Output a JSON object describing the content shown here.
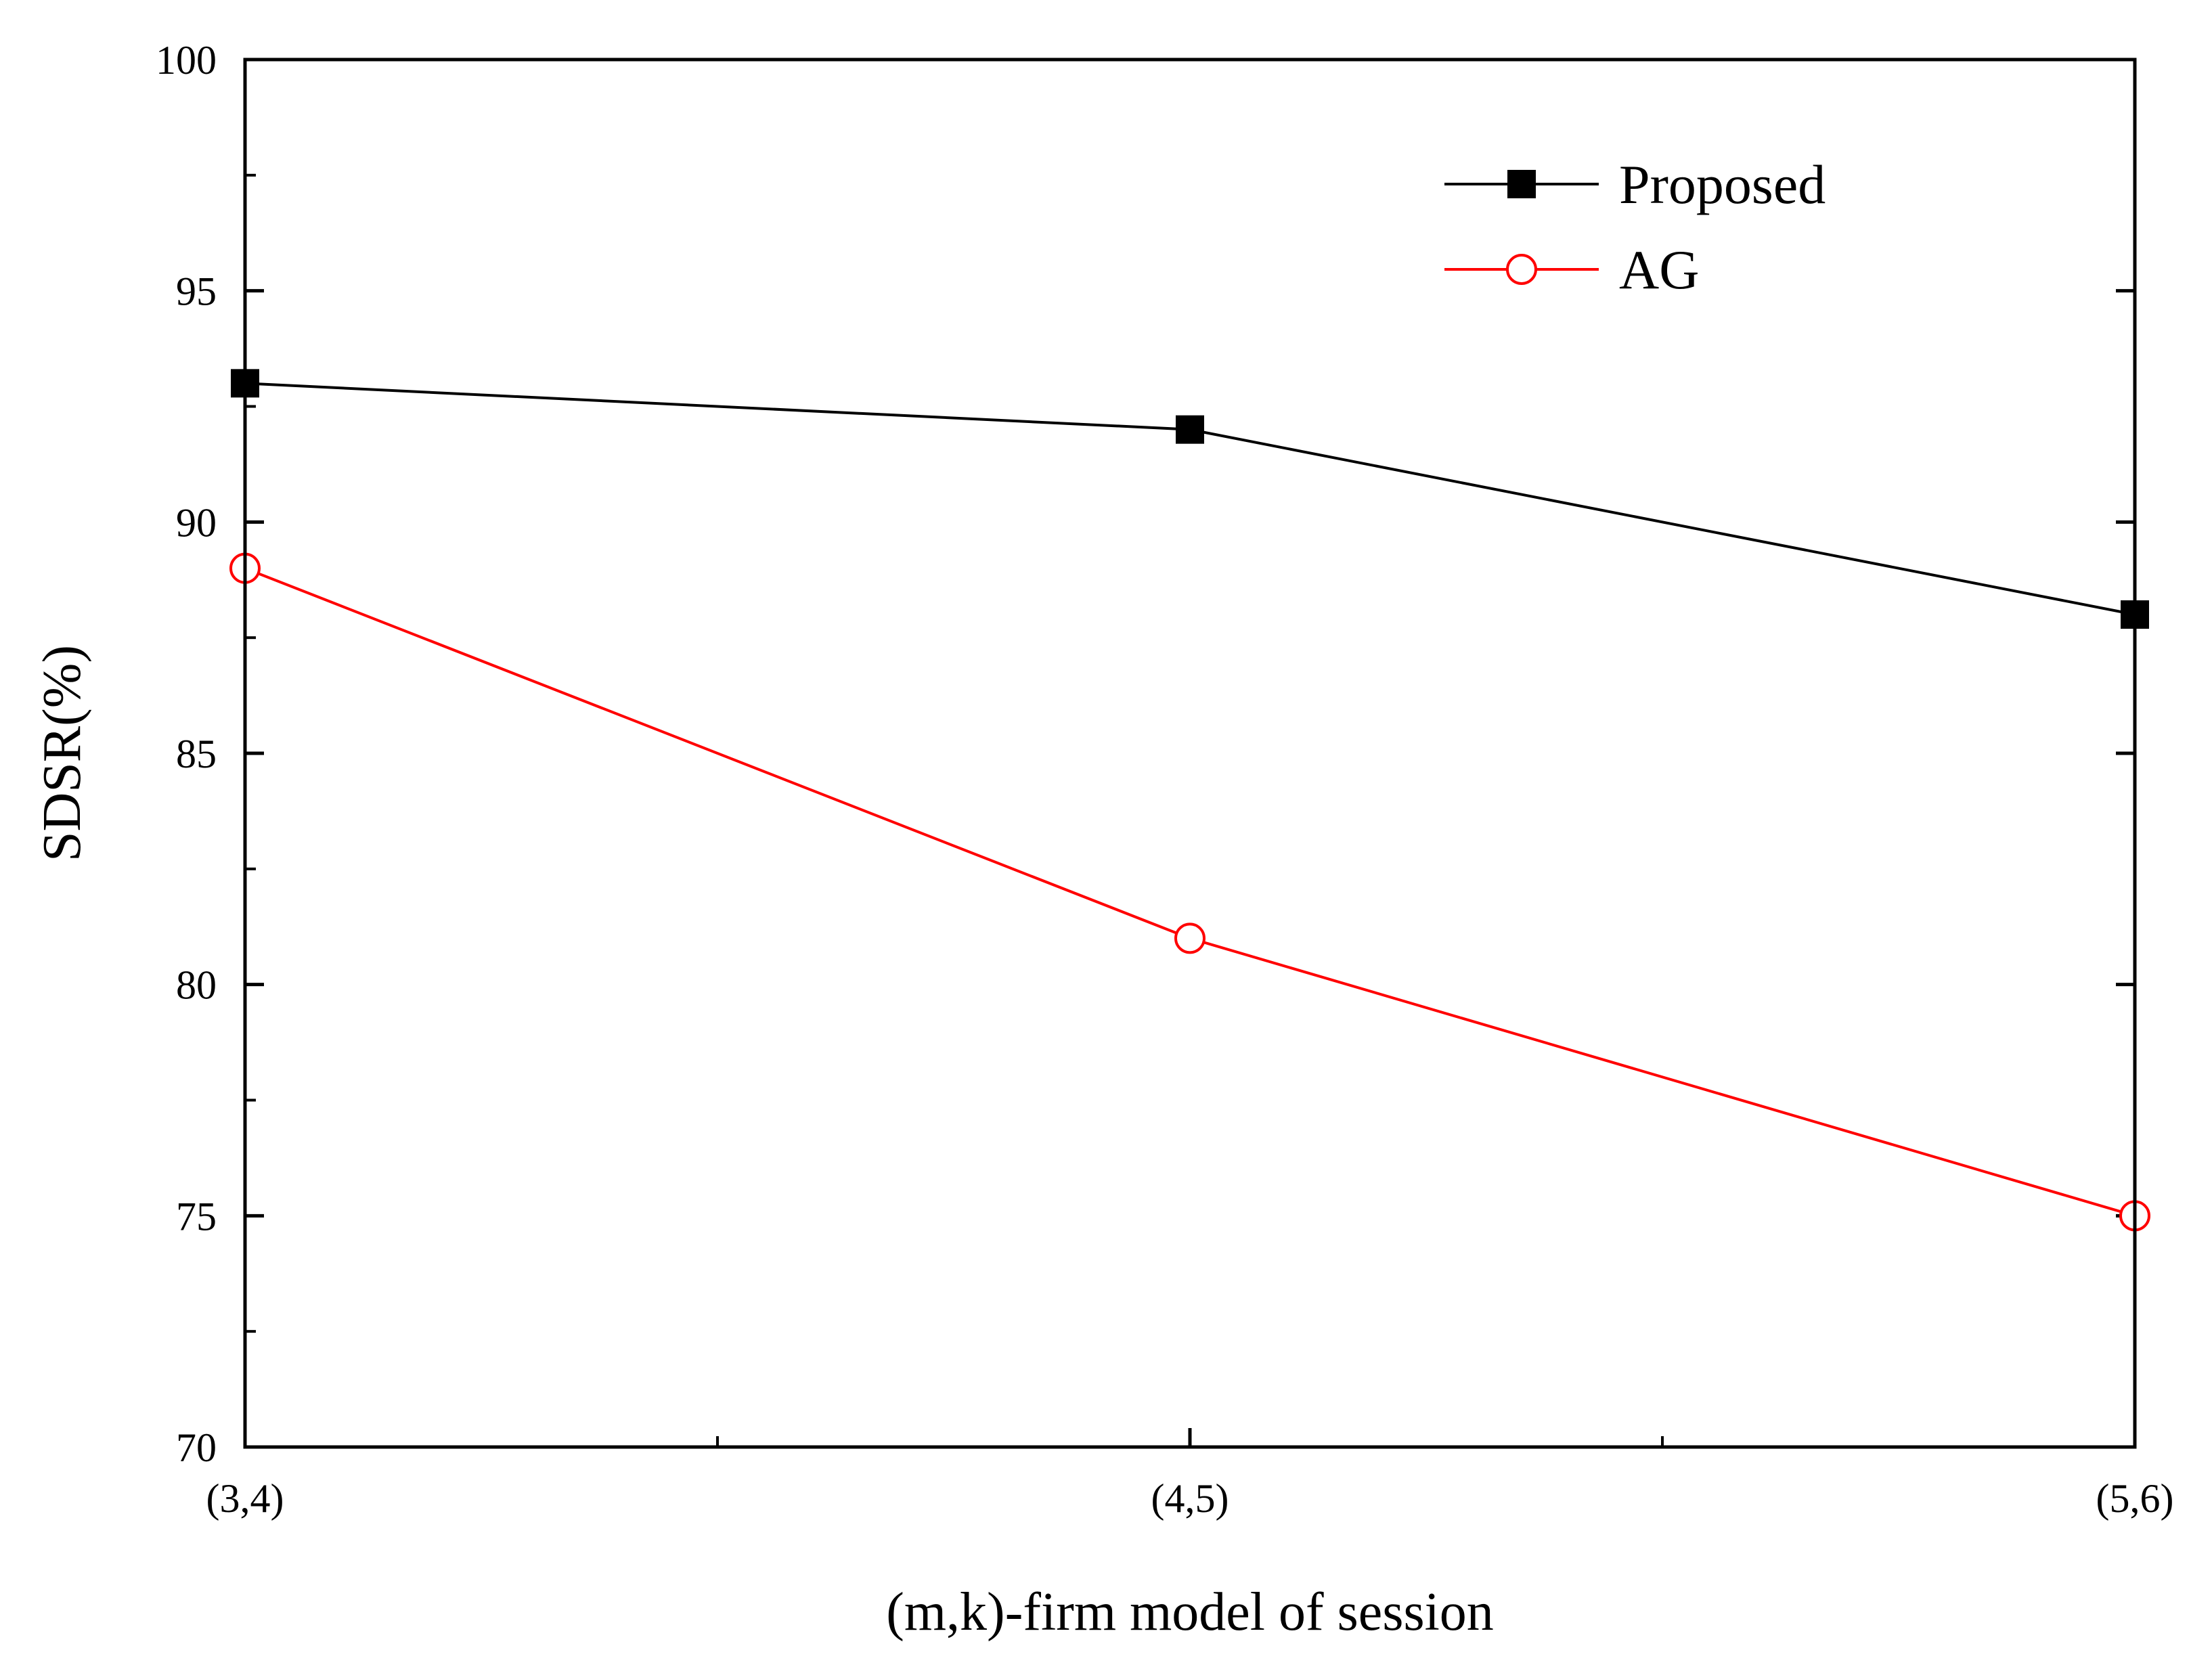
{
  "chart_data": {
    "type": "line",
    "title": "",
    "xlabel": "(m,k)-firm model of session",
    "ylabel": "SDSR(%)",
    "categories": [
      "(3,4)",
      "(4,5)",
      "(5,6)"
    ],
    "ylim": [
      70,
      100
    ],
    "yticks": [
      70,
      75,
      80,
      85,
      90,
      95,
      100
    ],
    "grid": false,
    "legend_position": "top-right",
    "series": [
      {
        "name": "Proposed",
        "values": [
          93,
          92,
          88
        ],
        "color": "#000000",
        "marker": "filled-square"
      },
      {
        "name": "AG",
        "values": [
          89,
          81,
          75
        ],
        "color": "#ff0000",
        "marker": "open-circle"
      }
    ]
  }
}
